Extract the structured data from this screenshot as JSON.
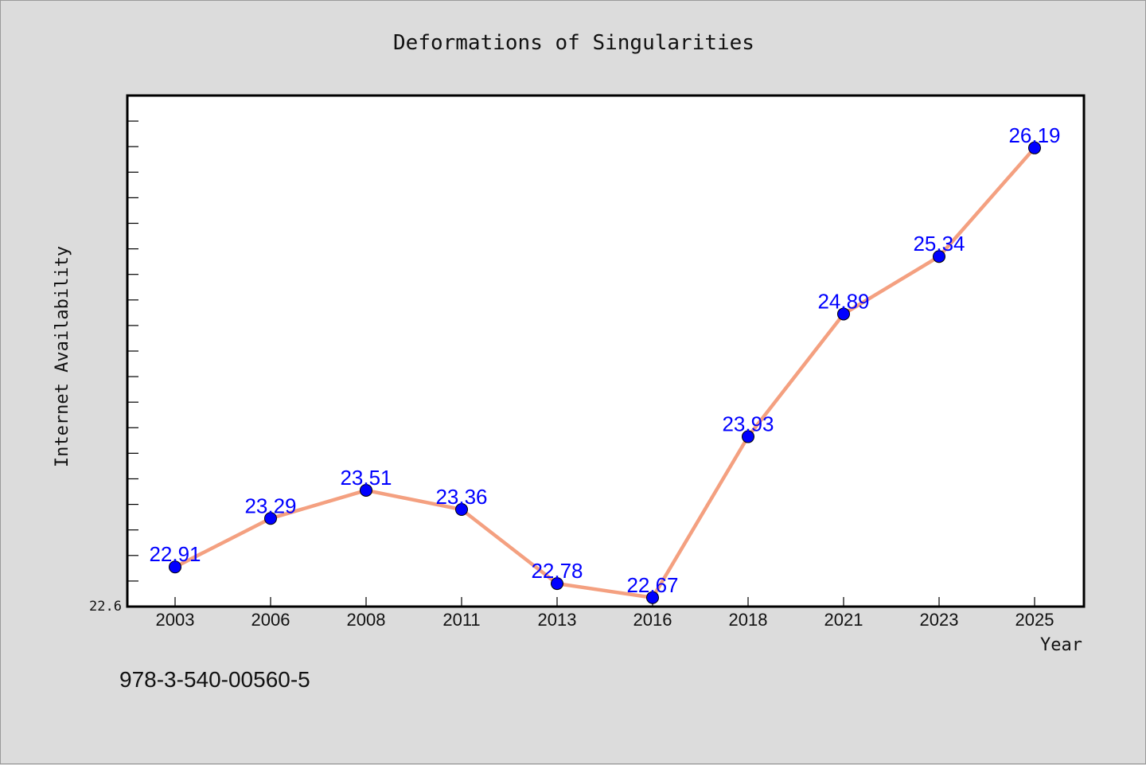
{
  "chart_data": {
    "type": "line",
    "title": "Deformations of Singularities",
    "xlabel": "Year",
    "ylabel": "Internet Availability",
    "categories": [
      "2003",
      "2006",
      "2008",
      "2011",
      "2013",
      "2016",
      "2018",
      "2021",
      "2023",
      "2025"
    ],
    "series": [
      {
        "values": [
          22.91,
          23.29,
          23.51,
          23.36,
          22.78,
          22.67,
          23.93,
          24.89,
          25.34,
          26.19
        ],
        "labels": [
          "22.91",
          "23.29",
          "23.51",
          "23.36",
          "22.78",
          "22.67",
          "23.93",
          "24.89",
          "25.34",
          "26.19"
        ]
      }
    ],
    "ylim": [
      22.6,
      26.6
    ],
    "ytick_labels": [
      "22.6"
    ],
    "grid": false,
    "colors": {
      "line": "#f4a080",
      "marker": "#0000ff",
      "data_label": "#0000ff"
    }
  },
  "caption": "978-3-540-00560-5"
}
